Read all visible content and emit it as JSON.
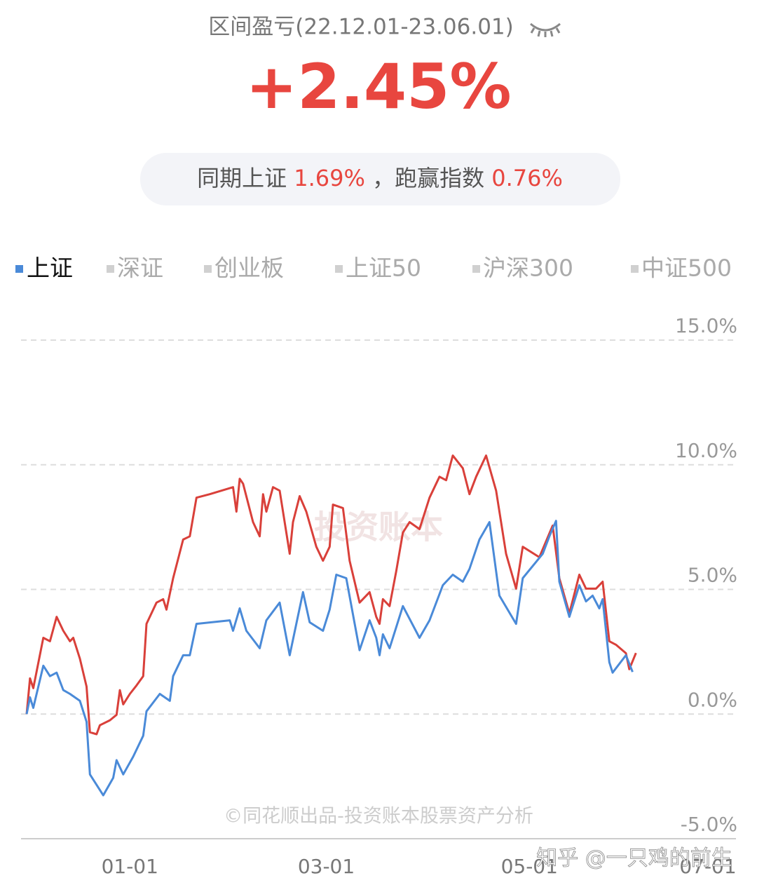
{
  "header": {
    "title": "区间盈亏(22.12.01-23.06.01)",
    "return": "+2.45%",
    "compare": {
      "label1": "同期上证",
      "value1": "1.69%",
      "label2": "，跑赢指数",
      "value2": "0.76%"
    }
  },
  "chart_data": {
    "type": "line",
    "other_indices": [
      "深证",
      "创业板",
      "上证50",
      "沪深300",
      "中证500"
    ],
    "xlim": [
      0,
      212
    ],
    "ylim": [
      -5,
      15
    ],
    "xticks": [
      {
        "value": 31,
        "label": "01-01"
      },
      {
        "value": 90,
        "label": "03-01"
      },
      {
        "value": 151,
        "label": "05-01"
      },
      {
        "value": 212,
        "label": "07-01"
      }
    ],
    "yticks": [
      {
        "value": -5,
        "label": "-5.0%"
      },
      {
        "value": 0,
        "label": "0.0%"
      },
      {
        "value": 5,
        "label": "5.0%"
      },
      {
        "value": 10,
        "label": "10.0%"
      },
      {
        "value": 15,
        "label": "15.0%"
      }
    ],
    "grid": true,
    "series": [
      {
        "name": "上证",
        "color": "#4a8ad8",
        "x": [
          0,
          1,
          2,
          5,
          7,
          9,
          11,
          13,
          16,
          18,
          19,
          23,
          26,
          27,
          29,
          32,
          35,
          36,
          40,
          43,
          44,
          47,
          49,
          51,
          61,
          62,
          64,
          66,
          70,
          72,
          76,
          79,
          83,
          85,
          89,
          91,
          93,
          96,
          100,
          103,
          105,
          106,
          107,
          109,
          113,
          118,
          121,
          125,
          128,
          131,
          133,
          136,
          139,
          142,
          147,
          149,
          155,
          157,
          159,
          160,
          163,
          166,
          168,
          170,
          172,
          173,
          175,
          176,
          180,
          182
        ],
        "values": [
          0,
          0.67,
          0.25,
          1.94,
          1.52,
          1.66,
          0.96,
          0.81,
          0.53,
          -0.31,
          -2.42,
          -3.26,
          -2.56,
          -1.85,
          -2.42,
          -1.71,
          -0.87,
          0.11,
          0.81,
          0.53,
          1.52,
          2.36,
          2.36,
          3.62,
          3.76,
          3.34,
          4.24,
          3.34,
          2.64,
          3.76,
          4.47,
          2.36,
          4.89,
          3.68,
          3.34,
          4.19,
          5.59,
          5.45,
          2.56,
          3.76,
          3.06,
          2.36,
          3.2,
          2.64,
          4.33,
          3.06,
          3.76,
          5.17,
          5.59,
          5.31,
          5.82,
          7,
          7.7,
          4.75,
          3.62,
          5.45,
          6.43,
          7.13,
          7.75,
          5.31,
          3.9,
          5.17,
          4.52,
          4.75,
          4.24,
          4.61,
          2.08,
          1.66,
          2.36,
          1.69
        ]
      },
      {
        "color": "#d9403a",
        "x": [
          0,
          1,
          2,
          5,
          7,
          9,
          11,
          13,
          14,
          16,
          18,
          19,
          21,
          22,
          25,
          27,
          28,
          29,
          31,
          33,
          35,
          36,
          39,
          41,
          42,
          44,
          47,
          49,
          51,
          55,
          62,
          63,
          64,
          65,
          68,
          70,
          71,
          72,
          74,
          76,
          79,
          80,
          82,
          84,
          87,
          89,
          91,
          92,
          95,
          97,
          100,
          103,
          105,
          106,
          107,
          109,
          111,
          113,
          115,
          118,
          121,
          124,
          126,
          128,
          131,
          133,
          135,
          138,
          141,
          144,
          147,
          149,
          154,
          158,
          160,
          163,
          166,
          168,
          171,
          173,
          175,
          177,
          180,
          181,
          183
        ],
        "values": [
          0,
          1.43,
          1.04,
          3.06,
          2.92,
          3.9,
          3.34,
          2.92,
          3.06,
          2.22,
          1.1,
          -0.73,
          -0.81,
          -0.45,
          -0.25,
          -0.03,
          0.96,
          0.39,
          0.81,
          1.15,
          1.52,
          3.62,
          4.47,
          4.61,
          4.19,
          5.45,
          7,
          7.13,
          8.68,
          8.82,
          9.1,
          8.12,
          9.44,
          9.24,
          7.7,
          7.13,
          8.82,
          8.12,
          9.1,
          8.96,
          6.43,
          7.7,
          8.74,
          8.12,
          6.71,
          6.15,
          6.71,
          8.4,
          8.26,
          6.15,
          4.47,
          4.89,
          3.9,
          3.62,
          4.61,
          4.33,
          5.73,
          7.28,
          7.7,
          7.42,
          8.68,
          9.52,
          9.38,
          10.37,
          9.86,
          8.82,
          9.52,
          10.37,
          8.96,
          6.43,
          5.03,
          6.71,
          6.29,
          7.56,
          5.45,
          4.04,
          5.59,
          5.03,
          5.03,
          5.31,
          2.92,
          2.78,
          2.44,
          1.8,
          2.45
        ]
      }
    ],
    "watermarks": [
      "投资账本",
      "©同花顺出品-投资账本股票资产分析",
      "知乎 @一只鸡的前生"
    ]
  }
}
